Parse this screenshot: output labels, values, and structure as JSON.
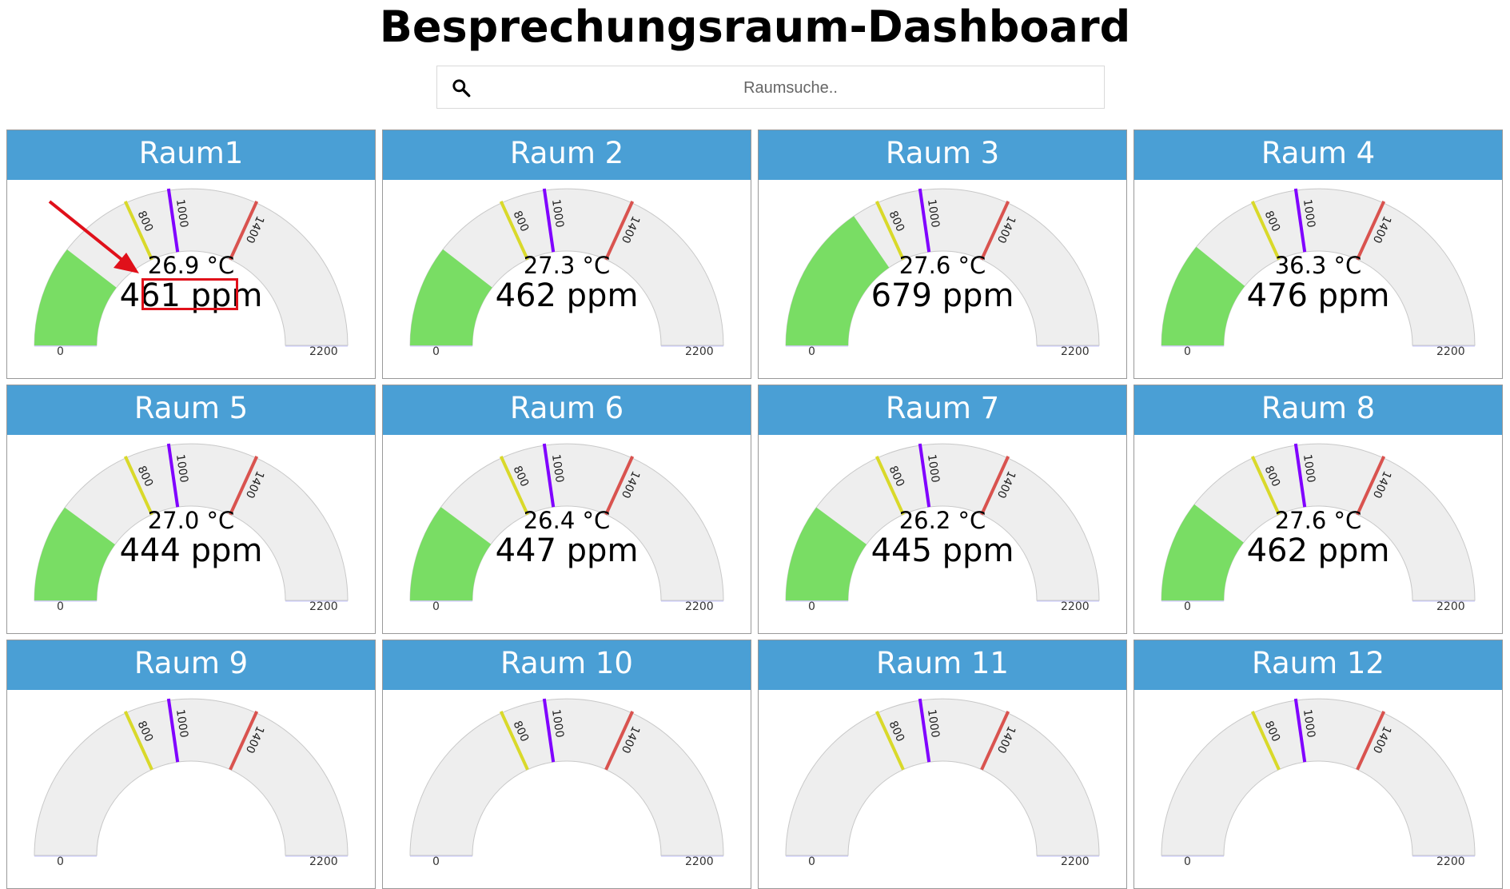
{
  "page": {
    "title": "Besprechungsraum-Dashboard"
  },
  "search": {
    "placeholder": "Raumsuche..",
    "icon": "search-icon"
  },
  "gauge": {
    "min": 0,
    "max": 2200,
    "min_label": "0",
    "max_label": "2200",
    "thresholds": [
      {
        "value": 800,
        "label": "800",
        "color": "#d9d92a"
      },
      {
        "value": 1000,
        "label": "1000",
        "color": "#8000ff"
      },
      {
        "value": 1400,
        "label": "1400",
        "color": "#d9534f"
      }
    ],
    "fill_color": "#79dd64",
    "track_color": "#eeeeee"
  },
  "rooms": [
    {
      "name": "Raum1",
      "temp": "26.9 °C",
      "ppm_text": "461 ppm",
      "ppm": 461
    },
    {
      "name": "Raum 2",
      "temp": "27.3 °C",
      "ppm_text": "462 ppm",
      "ppm": 462
    },
    {
      "name": "Raum 3",
      "temp": "27.6 °C",
      "ppm_text": "679 ppm",
      "ppm": 679
    },
    {
      "name": "Raum 4",
      "temp": "36.3 °C",
      "ppm_text": "476 ppm",
      "ppm": 476
    },
    {
      "name": "Raum 5",
      "temp": "27.0 °C",
      "ppm_text": "444 ppm",
      "ppm": 444
    },
    {
      "name": "Raum 6",
      "temp": "26.4 °C",
      "ppm_text": "447 ppm",
      "ppm": 447
    },
    {
      "name": "Raum 7",
      "temp": "26.2 °C",
      "ppm_text": "445 ppm",
      "ppm": 445
    },
    {
      "name": "Raum 8",
      "temp": "27.6 °C",
      "ppm_text": "462 ppm",
      "ppm": 462
    },
    {
      "name": "Raum 9",
      "temp": "",
      "ppm_text": "",
      "ppm": null
    },
    {
      "name": "Raum 10",
      "temp": "",
      "ppm_text": "",
      "ppm": null
    },
    {
      "name": "Raum 11",
      "temp": "",
      "ppm_text": "",
      "ppm": null
    },
    {
      "name": "Raum 12",
      "temp": "",
      "ppm_text": "",
      "ppm": null
    }
  ],
  "annotation": {
    "highlight_color": "#e0101a"
  }
}
